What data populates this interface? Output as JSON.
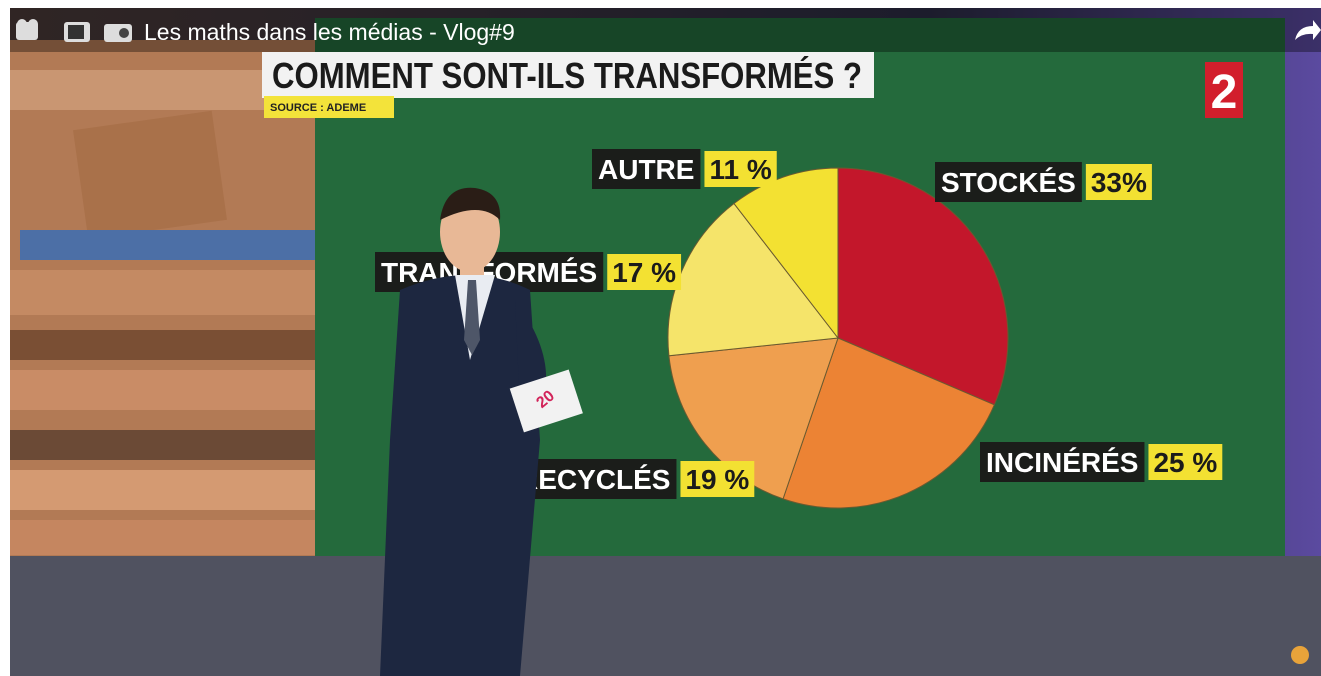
{
  "video_title": "Les maths dans les médias - Vlog#9",
  "channel_logo": "2",
  "paper_label": "20",
  "chart_data": {
    "type": "pie",
    "title": "COMMENT SONT-ILS TRANSFORMÉS ?",
    "subtitle": "SOURCE : ADEME",
    "categories": [
      "STOCKÉS",
      "INCINÉRÉS",
      "RECYCLÉS",
      "TRANSFORMÉS",
      "AUTRE"
    ],
    "values": [
      33,
      25,
      19,
      17,
      11
    ],
    "value_labels": [
      "33%",
      "25 %",
      "19 %",
      "17 %",
      "11 %"
    ],
    "colors": [
      "#c3172b",
      "#ec8334",
      "#ef9f4f",
      "#f5e46a",
      "#f3e132"
    ]
  }
}
